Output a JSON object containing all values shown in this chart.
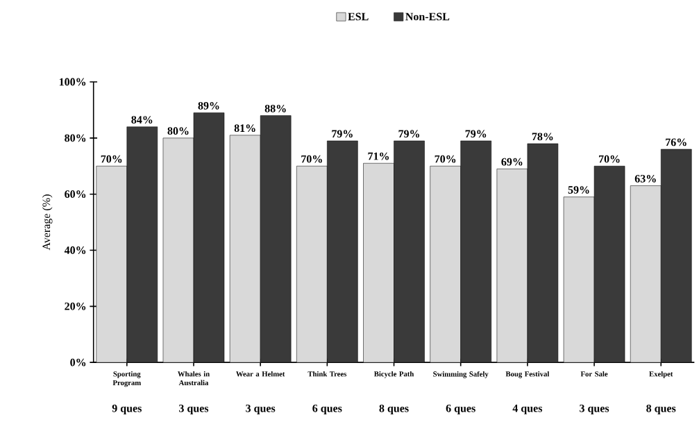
{
  "chart_data": {
    "type": "bar",
    "ylabel": "Average (%)",
    "categories": [
      "Sporting Program",
      "Whales in Australia",
      "Wear a Helmet",
      "Think Trees",
      "Bicycle Path",
      "Swimming Safely",
      "Boug Festival",
      "For Sale",
      "Exelpet"
    ],
    "series": [
      {
        "name": "ESL",
        "color": "#d9d9d9",
        "values": [
          70,
          80,
          81,
          70,
          71,
          70,
          69,
          59,
          63
        ],
        "value_labels": [
          "70%",
          "80%",
          "81%",
          "70%",
          "71%",
          "70%",
          "69%",
          "59%",
          "63%"
        ]
      },
      {
        "name": "Non-ESL",
        "color": "#3a3a3a",
        "values": [
          84,
          89,
          88,
          79,
          79,
          79,
          78,
          70,
          76
        ],
        "value_labels": [
          "84%",
          "89%",
          "88%",
          "79%",
          "79%",
          "79%",
          "78%",
          "70%",
          "76%"
        ]
      }
    ],
    "ylim": [
      0,
      100
    ],
    "yticks": [
      {
        "value": 0,
        "label": "0%"
      },
      {
        "value": 20,
        "label": "20%"
      },
      {
        "value": 40,
        "label": "40%"
      },
      {
        "value": 60,
        "label": "60%"
      },
      {
        "value": 80,
        "label": "80%"
      },
      {
        "value": 100,
        "label": "100%"
      }
    ],
    "legend": "top",
    "grid": false,
    "annotations": [
      "9 ques",
      "3 ques",
      "3 ques",
      "6 ques",
      "8 ques",
      "6 ques",
      "4 ques",
      "3 ques",
      "8 ques"
    ]
  }
}
